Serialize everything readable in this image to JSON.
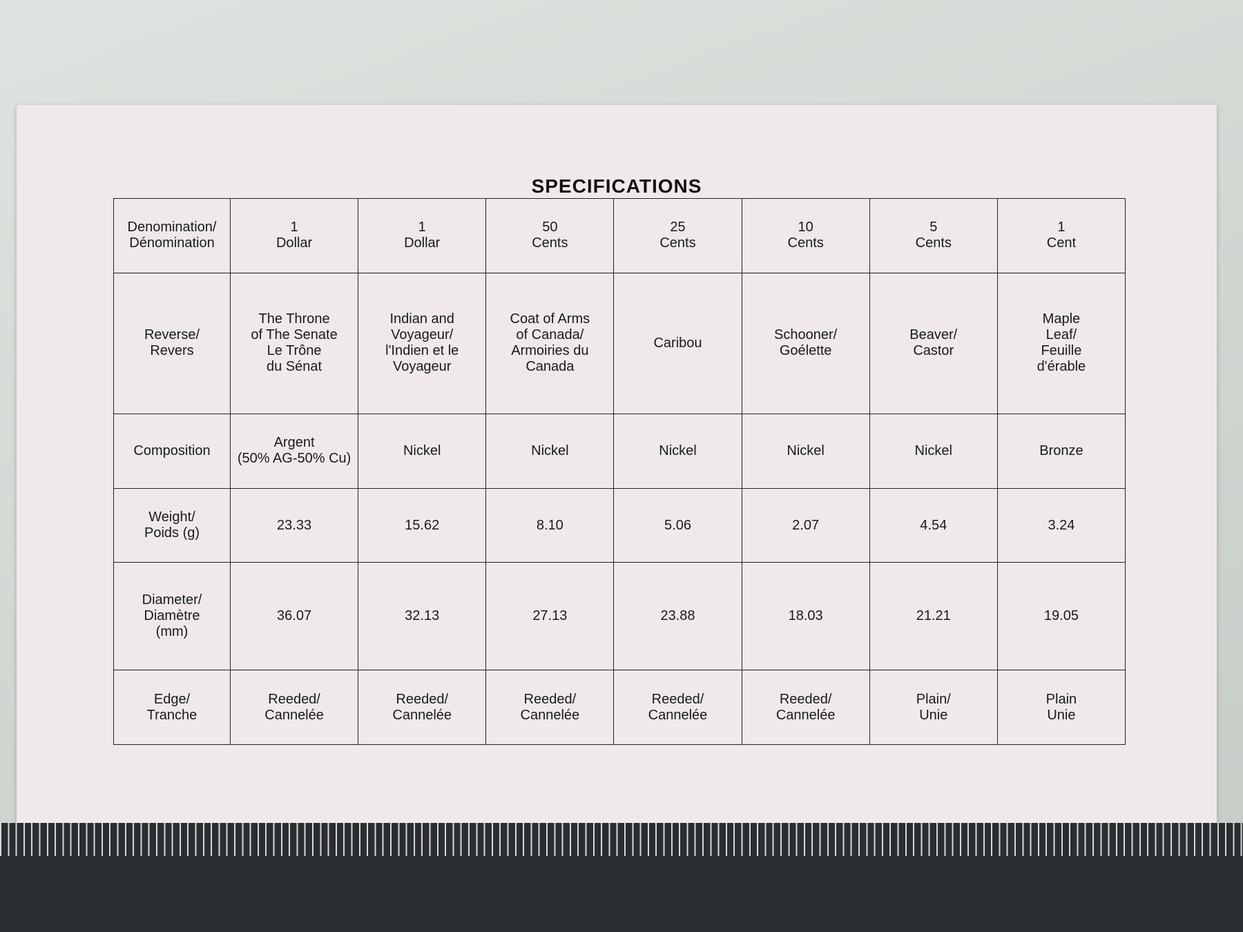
{
  "header": {
    "title": "SPECIFICATIONS"
  },
  "table": {
    "rows": [
      [
        "Denomination/\nDénomination",
        "1\nDollar",
        "1\nDollar",
        "50\nCents",
        "25\nCents",
        "10\nCents",
        "5\nCents",
        "1\nCent"
      ],
      [
        "Reverse/\nRevers",
        "The Throne\nof The Senate\nLe Trône\ndu Sénat",
        "Indian and\nVoyageur/\nl'Indien et le\nVoyageur",
        "Coat of Arms\nof Canada/\nArmoiries du\nCanada",
        "Caribou",
        "Schooner/\nGoélette",
        "Beaver/\nCastor",
        "Maple\nLeaf/\nFeuille\nd'érable"
      ],
      [
        "Composition",
        "Argent\n(50% AG-50% Cu)",
        "Nickel",
        "Nickel",
        "Nickel",
        "Nickel",
        "Nickel",
        "Bronze"
      ],
      [
        "Weight/\nPoids   (g)",
        "23.33",
        "15.62",
        "8.10",
        "5.06",
        "2.07",
        "4.54",
        "3.24"
      ],
      [
        "Diameter/\nDiamètre\n(mm)",
        "36.07",
        "32.13",
        "27.13",
        "23.88",
        "18.03",
        "21.21",
        "19.05"
      ],
      [
        "Edge/\nTranche",
        "Reeded/\nCannelée",
        "Reeded/\nCannelée",
        "Reeded/\nCannelée",
        "Reeded/\nCannelée",
        "Reeded/\nCannelée",
        "Plain/\nUnie",
        "Plain\nUnie"
      ]
    ]
  }
}
